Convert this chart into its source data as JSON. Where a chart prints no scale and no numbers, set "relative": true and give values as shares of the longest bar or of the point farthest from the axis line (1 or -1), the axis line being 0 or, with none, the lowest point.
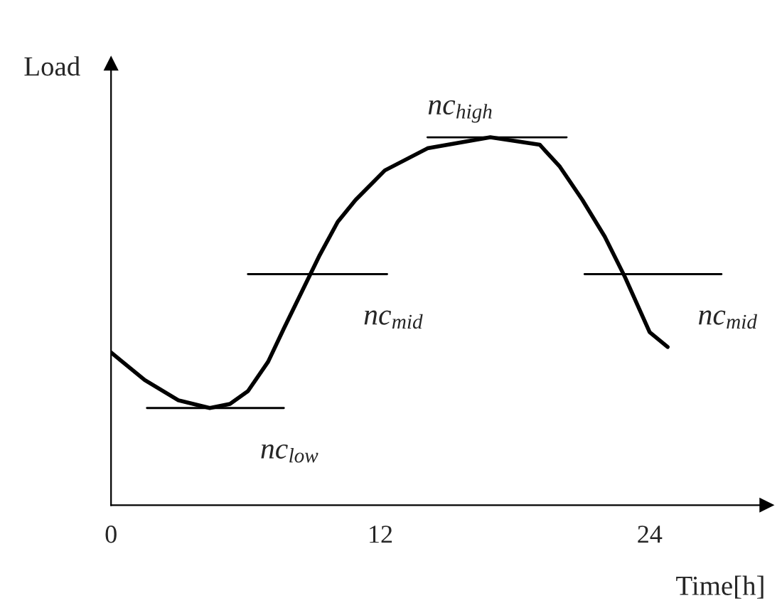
{
  "chart_data": {
    "type": "line",
    "relative": true,
    "xlabel": "Time[h]",
    "ylabel": "Load",
    "xlim": [
      0,
      29.2
    ],
    "xticks": [
      0,
      12,
      24
    ],
    "legend": false,
    "grid": false,
    "marker": "none",
    "line_style": "solid",
    "series": [
      {
        "color": "#000000",
        "x": [
          0,
          1.5,
          3,
          4.4,
          5.3,
          6.1,
          7,
          7.7,
          8.5,
          9.3,
          10.1,
          10.9,
          12.2,
          14.1,
          16.9,
          19.1,
          20,
          21,
          22,
          22.9,
          24,
          24.8
        ],
        "values": [
          0.415,
          0.34,
          0.285,
          0.264,
          0.275,
          0.31,
          0.39,
          0.48,
          0.58,
          0.68,
          0.77,
          0.83,
          0.91,
          0.97,
          1.0,
          0.98,
          0.92,
          0.83,
          0.73,
          0.62,
          0.47,
          0.43
        ]
      },
      {
        "color": "#000000",
        "x": [
          1.6,
          7.7
        ],
        "values": [
          0.264,
          0.264
        ]
      },
      {
        "color": "#000000",
        "x": [
          6.1,
          12.3
        ],
        "values": [
          0.628,
          0.628
        ]
      },
      {
        "color": "#000000",
        "x": [
          14.1,
          20.3
        ],
        "values": [
          1.0,
          1.0
        ]
      },
      {
        "color": "#000000",
        "x": [
          21.1,
          27.2
        ],
        "values": [
          0.628,
          0.628
        ]
      }
    ],
    "annotations": [
      {
        "text": "nc$_{low}$",
        "x": 7.7,
        "y": 0.264
      },
      {
        "text": "nc$_{mid}$",
        "x": 12.3,
        "y": 0.628
      },
      {
        "text": "nc$_{high}$",
        "x": 14.1,
        "y": 1.0
      },
      {
        "text": "nc$_{mid}$",
        "x": 27.2,
        "y": 0.628
      }
    ]
  }
}
